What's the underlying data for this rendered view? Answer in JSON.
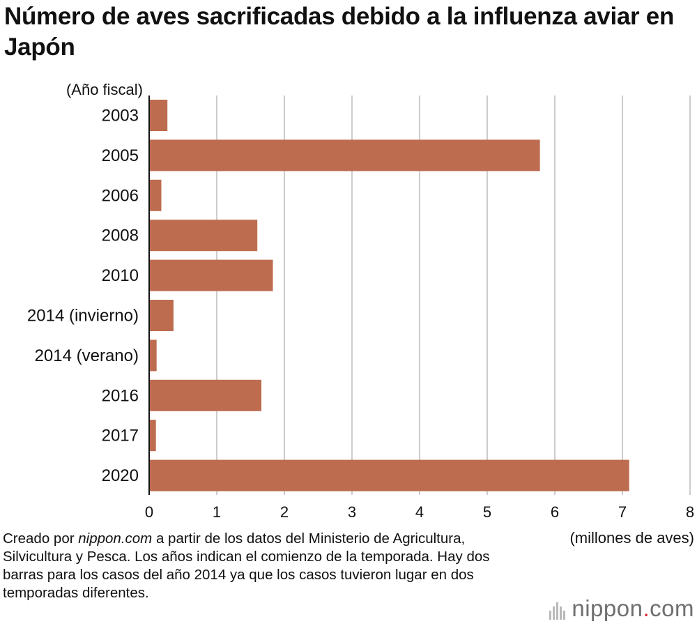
{
  "title": "Número de aves sacrificadas debido a la influenza aviar en Japón",
  "chart_data": {
    "type": "bar",
    "orientation": "horizontal",
    "title": "Número de aves sacrificadas debido a la influenza aviar en Japón",
    "ylabel": "(Año fiscal)",
    "xlabel": "(millones de aves)",
    "categories": [
      "2003",
      "2005",
      "2006",
      "2008",
      "2010",
      "2014 (invierno)",
      "2014 (verano)",
      "2016",
      "2017",
      "2020"
    ],
    "values": [
      0.27,
      5.78,
      0.18,
      1.6,
      1.83,
      0.36,
      0.11,
      1.66,
      0.1,
      7.1
    ],
    "xlim": [
      0,
      8
    ],
    "xticks": [
      "0",
      "1",
      "2",
      "3",
      "4",
      "5",
      "6",
      "7",
      "8"
    ],
    "grid": true,
    "bar_color": "#bd6c4f",
    "grid_color": "#cccccc"
  },
  "note": {
    "prefix": "Creado por ",
    "source": "nippon.com",
    "suffix": " a partir de los datos del Ministerio de Agricultura, Silvicultura y Pesca. Los años indican el comienzo de la temporada. Hay dos barras para los casos del año 2014 ya que los casos tuvieron lugar en dos temporadas diferentes."
  },
  "logo": {
    "name": "nippon",
    "dot": ".",
    "tld": "com",
    "icon": "nippon-logo-bars-icon"
  }
}
